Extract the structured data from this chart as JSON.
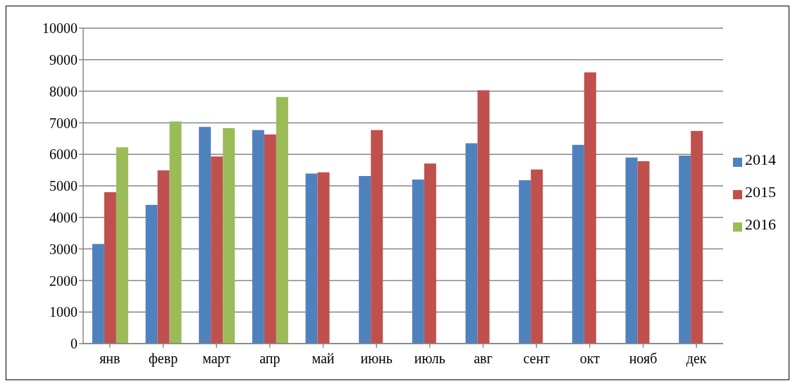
{
  "chart_data": {
    "type": "bar",
    "categories": [
      "янв",
      "февр",
      "март",
      "апр",
      "май",
      "июнь",
      "июль",
      "авг",
      "сент",
      "окт",
      "нояб",
      "дек"
    ],
    "series": [
      {
        "name": "2014",
        "color": "#4f81bd",
        "values": [
          3160,
          4400,
          6870,
          6770,
          5390,
          5310,
          5200,
          6350,
          5180,
          6300,
          5900,
          5960
        ]
      },
      {
        "name": "2015",
        "color": "#c0504d",
        "values": [
          4800,
          5490,
          5930,
          6630,
          5430,
          6770,
          5710,
          8030,
          5520,
          8600,
          5780,
          6740
        ]
      },
      {
        "name": "2016",
        "color": "#9bbb59",
        "values": [
          6220,
          7040,
          6830,
          7820,
          null,
          null,
          null,
          null,
          null,
          null,
          null,
          null
        ]
      }
    ],
    "ylim": [
      0,
      10000
    ],
    "yticks": [
      0,
      1000,
      2000,
      3000,
      4000,
      5000,
      6000,
      7000,
      8000,
      9000,
      10000
    ],
    "grid": "y",
    "legend": "right"
  }
}
